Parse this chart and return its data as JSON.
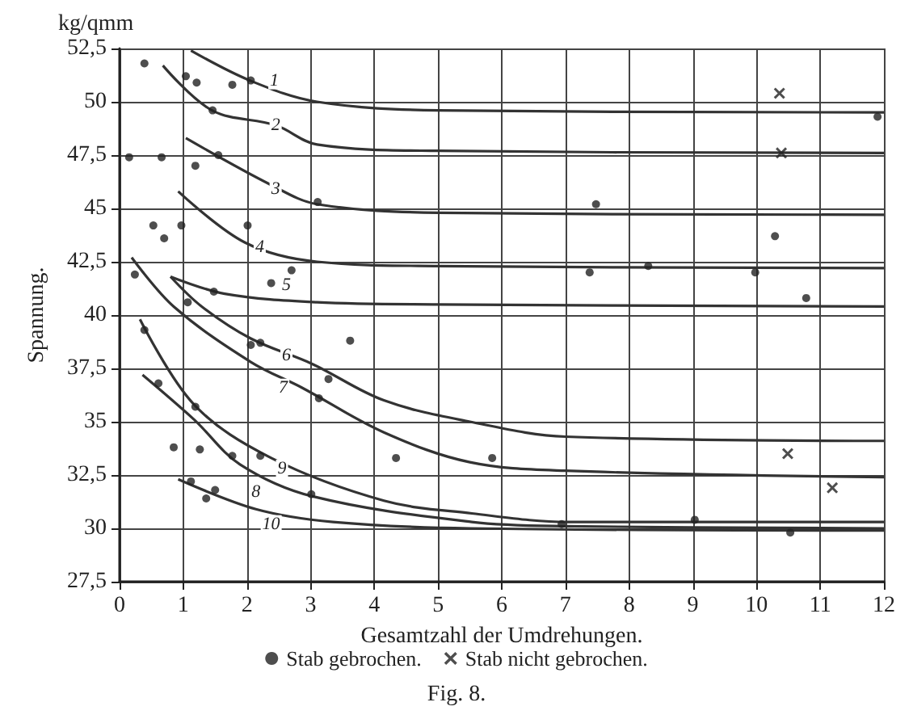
{
  "chart_data": {
    "type": "line",
    "xlabel": "Gesamtzahl der Umdrehungen.",
    "ylabel": "Spannung.",
    "annotations": [
      "kg/qmm",
      "Fig. 8.",
      {
        "text": "1",
        "x": 2.43,
        "y": 51.0
      },
      {
        "text": "2",
        "x": 2.45,
        "y": 48.9
      },
      {
        "text": "3",
        "x": 2.45,
        "y": 45.9
      },
      {
        "text": "4",
        "x": 2.2,
        "y": 43.2
      },
      {
        "text": "5",
        "x": 2.62,
        "y": 41.4
      },
      {
        "text": "6",
        "x": 2.62,
        "y": 38.1
      },
      {
        "text": "7",
        "x": 2.57,
        "y": 36.6
      },
      {
        "text": "8",
        "x": 2.14,
        "y": 31.7
      },
      {
        "text": "9",
        "x": 2.55,
        "y": 32.8
      },
      {
        "text": "10",
        "x": 2.38,
        "y": 30.2
      }
    ],
    "xlim": [
      0,
      12
    ],
    "xticks": [
      0,
      1,
      2,
      3,
      4,
      5,
      6,
      7,
      8,
      9,
      10,
      11,
      12
    ],
    "ylim": [
      27.5,
      52.5
    ],
    "yticks": [
      {
        "value": 27.5,
        "label": "27,5"
      },
      30,
      {
        "value": 32.5,
        "label": "32,5"
      },
      35,
      {
        "value": 37.5,
        "label": "37,5"
      },
      40,
      {
        "value": 42.5,
        "label": "42,5"
      },
      45,
      {
        "value": 47.5,
        "label": "47,5"
      },
      50,
      {
        "value": 52.5,
        "label": "52,5"
      }
    ],
    "grid": true,
    "legend": "bottom",
    "series": [
      {
        "color": "#333333",
        "marker": "none",
        "x": [
          1.12,
          2.06,
          3.1,
          5,
          12
        ],
        "values": [
          52.4,
          50.98,
          50.0,
          49.6,
          49.5
        ]
      },
      {
        "color": "#333333",
        "marker": "none",
        "x": [
          0.68,
          1.45,
          2.45,
          3.1,
          5,
          12
        ],
        "values": [
          51.7,
          49.6,
          48.9,
          48.0,
          47.7,
          47.6
        ]
      },
      {
        "color": "#333333",
        "marker": "none",
        "x": [
          1.04,
          2.38,
          3.1,
          5,
          12
        ],
        "values": [
          48.3,
          46.1,
          45.2,
          44.8,
          44.7
        ]
      },
      {
        "color": "#333333",
        "marker": "none",
        "x": [
          0.92,
          1.97,
          3.1,
          5,
          12
        ],
        "values": [
          45.8,
          43.4,
          42.5,
          42.3,
          42.2
        ]
      },
      {
        "color": "#333333",
        "marker": "none",
        "x": [
          0.8,
          1.65,
          3.1,
          5,
          12
        ],
        "values": [
          41.8,
          41.0,
          40.6,
          40.5,
          40.4
        ]
      },
      {
        "color": "#333333",
        "marker": "none",
        "x": [
          0.8,
          1.29,
          2.06,
          3.03,
          4.15,
          5.5,
          7,
          12
        ],
        "values": [
          41.8,
          40.4,
          38.9,
          37.7,
          36.0,
          35.0,
          34.3,
          34.1
        ]
      },
      {
        "color": "#333333",
        "marker": "none",
        "x": [
          0.19,
          0.85,
          2.06,
          2.86,
          4.15,
          5.5,
          7,
          12
        ],
        "values": [
          42.7,
          40.4,
          37.8,
          36.6,
          34.5,
          33.1,
          32.7,
          32.4
        ]
      },
      {
        "color": "#333333",
        "marker": "none",
        "x": [
          0.36,
          1.17,
          1.89,
          3.03,
          5.53,
          7,
          12
        ],
        "values": [
          37.2,
          35.1,
          33.0,
          31.5,
          30.3,
          30.1,
          30.0
        ]
      },
      {
        "color": "#333333",
        "marker": "none",
        "x": [
          0.32,
          1.17,
          2.38,
          4.15,
          5.53,
          7.04,
          12
        ],
        "values": [
          39.8,
          35.8,
          33.3,
          31.3,
          30.7,
          30.3,
          30.3
        ]
      },
      {
        "color": "#333333",
        "marker": "none",
        "x": [
          0.92,
          2.14,
          3.35,
          5.5,
          12
        ],
        "values": [
          32.3,
          30.9,
          30.3,
          30.0,
          29.9
        ]
      },
      {
        "type": "scatter",
        "name": "Stab gebrochen.",
        "color": "#222222",
        "marker": "circle",
        "x": [
          0.39,
          1.04,
          1.21,
          1.77,
          2.06,
          1.46,
          0.15,
          0.66,
          1.19,
          1.55,
          3.11,
          0.53,
          0.7,
          0.97,
          2.01,
          2.7,
          2.38,
          1.48,
          0.24,
          1.07,
          7.48,
          10.29,
          7.38,
          8.3,
          9.98,
          10.78,
          11.9,
          0.39,
          2.06,
          2.21,
          3.62,
          0.61,
          1.19,
          3.28,
          3.13,
          0.85,
          1.26,
          1.77,
          2.21,
          4.34,
          1.12,
          1.36,
          1.5,
          3.01,
          5.85,
          9.03,
          10.53,
          6.94
        ],
        "values": [
          51.8,
          51.2,
          50.9,
          50.8,
          51.0,
          49.6,
          47.4,
          47.4,
          47.0,
          47.5,
          45.3,
          44.2,
          43.6,
          44.2,
          44.2,
          42.1,
          41.5,
          41.1,
          41.9,
          40.6,
          45.2,
          43.7,
          42.0,
          42.3,
          42.0,
          40.8,
          49.3,
          39.3,
          38.6,
          38.7,
          38.8,
          36.8,
          35.7,
          37.0,
          36.1,
          33.8,
          33.7,
          33.4,
          33.4,
          33.3,
          32.2,
          31.4,
          31.8,
          31.6,
          33.3,
          30.4,
          29.8,
          30.2
        ]
      },
      {
        "type": "scatter",
        "name": "Stab nicht gebrochen.",
        "color": "#222222",
        "marker": "cross",
        "x": [
          10.36,
          10.39,
          10.49,
          11.19
        ],
        "values": [
          50.4,
          47.6,
          33.5,
          31.9
        ]
      }
    ]
  }
}
